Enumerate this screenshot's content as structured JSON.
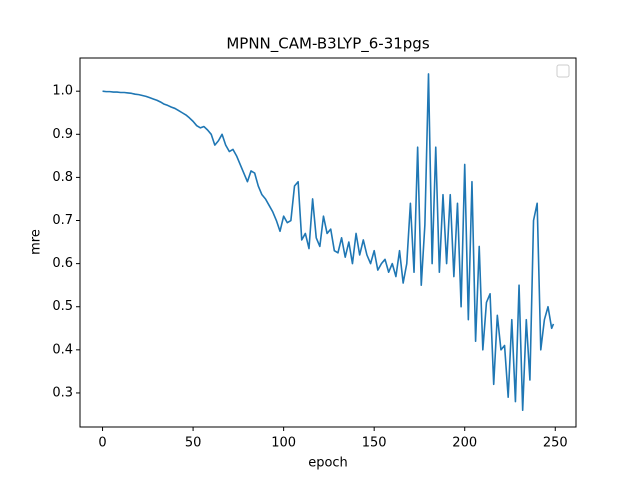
{
  "chart_data": {
    "type": "line",
    "title": "MPNN_CAM-B3LYP_6-31pgs",
    "x_label": "epoch",
    "y_label": "mre",
    "x": [
      0,
      2,
      4,
      6,
      8,
      10,
      12,
      14,
      16,
      18,
      20,
      22,
      24,
      26,
      28,
      30,
      32,
      34,
      36,
      38,
      40,
      42,
      44,
      46,
      48,
      50,
      52,
      54,
      56,
      58,
      60,
      62,
      64,
      66,
      68,
      70,
      72,
      74,
      76,
      78,
      80,
      82,
      84,
      86,
      88,
      90,
      92,
      94,
      96,
      98,
      100,
      102,
      104,
      106,
      108,
      110,
      112,
      114,
      116,
      118,
      120,
      122,
      124,
      126,
      128,
      130,
      132,
      134,
      136,
      138,
      140,
      142,
      144,
      146,
      148,
      150,
      152,
      154,
      156,
      158,
      160,
      162,
      164,
      166,
      168,
      170,
      172,
      174,
      176,
      178,
      180,
      182,
      184,
      186,
      188,
      190,
      192,
      194,
      196,
      198,
      200,
      202,
      204,
      206,
      208,
      210,
      212,
      214,
      216,
      218,
      220,
      222,
      224,
      226,
      228,
      230,
      232,
      234,
      236,
      238,
      240,
      242,
      244,
      246,
      248,
      249
    ],
    "series": [
      {
        "color": "#1f77b4",
        "values": [
          1.0,
          0.999,
          0.999,
          0.998,
          0.998,
          0.997,
          0.997,
          0.996,
          0.995,
          0.993,
          0.992,
          0.99,
          0.988,
          0.985,
          0.982,
          0.979,
          0.975,
          0.97,
          0.967,
          0.963,
          0.96,
          0.955,
          0.95,
          0.945,
          0.938,
          0.93,
          0.92,
          0.915,
          0.918,
          0.91,
          0.9,
          0.875,
          0.885,
          0.9,
          0.875,
          0.86,
          0.865,
          0.85,
          0.83,
          0.81,
          0.79,
          0.815,
          0.81,
          0.78,
          0.76,
          0.75,
          0.735,
          0.72,
          0.7,
          0.675,
          0.71,
          0.695,
          0.7,
          0.78,
          0.79,
          0.655,
          0.67,
          0.635,
          0.75,
          0.66,
          0.64,
          0.71,
          0.67,
          0.68,
          0.63,
          0.625,
          0.66,
          0.615,
          0.65,
          0.6,
          0.67,
          0.62,
          0.655,
          0.62,
          0.6,
          0.63,
          0.585,
          0.6,
          0.61,
          0.58,
          0.6,
          0.57,
          0.63,
          0.555,
          0.6,
          0.74,
          0.58,
          0.87,
          0.55,
          0.69,
          1.04,
          0.6,
          0.87,
          0.58,
          0.76,
          0.6,
          0.76,
          0.57,
          0.74,
          0.5,
          0.83,
          0.47,
          0.79,
          0.42,
          0.64,
          0.4,
          0.51,
          0.53,
          0.32,
          0.48,
          0.4,
          0.41,
          0.29,
          0.47,
          0.28,
          0.55,
          0.26,
          0.47,
          0.33,
          0.7,
          0.74,
          0.4,
          0.47,
          0.5,
          0.45,
          0.46
        ]
      }
    ],
    "xlim": [
      -12.45,
      261.45
    ],
    "ylim": [
      0.221,
      1.077
    ],
    "xticks": [
      0,
      50,
      100,
      150,
      200,
      250
    ],
    "yticks": [
      0.3,
      0.4,
      0.5,
      0.6,
      0.7,
      0.8,
      0.9,
      {
        "value": 1,
        "label": "1.0"
      }
    ],
    "legend": "upper right"
  }
}
